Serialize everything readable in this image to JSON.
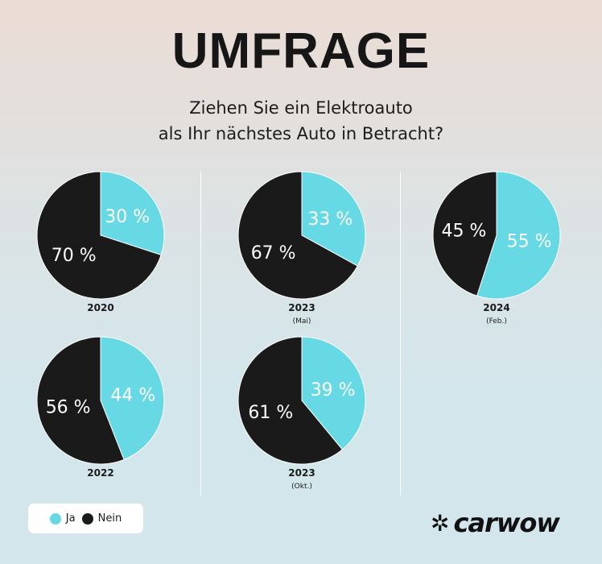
{
  "title": "UMFRAGE",
  "question": [
    "Ziehen Sie ein Elektroauto",
    "als Ihr nächstes Auto in Betracht?"
  ],
  "colors": {
    "ja": "#66d9e5",
    "nein": "#1a1a1a"
  },
  "legend": [
    {
      "label": "Ja",
      "color": "#66d9e5"
    },
    {
      "label": "Nein",
      "color": "#1a1a1a"
    }
  ],
  "logo": "carwow",
  "chart_data": [
    {
      "type": "pie",
      "label": "2020",
      "sublabel": "",
      "slices": [
        {
          "name": "Ja",
          "value": 30,
          "text": "30 %"
        },
        {
          "name": "Nein",
          "value": 70,
          "text": "70 %"
        }
      ]
    },
    {
      "type": "pie",
      "label": "2023",
      "sublabel": "(Mai)",
      "slices": [
        {
          "name": "Ja",
          "value": 33,
          "text": "33 %"
        },
        {
          "name": "Nein",
          "value": 67,
          "text": "67 %"
        }
      ]
    },
    {
      "type": "pie",
      "label": "2024",
      "sublabel": "(Feb.)",
      "slices": [
        {
          "name": "Ja",
          "value": 55,
          "text": "55 %"
        },
        {
          "name": "Nein",
          "value": 45,
          "text": "45 %"
        }
      ]
    },
    {
      "type": "pie",
      "label": "2022",
      "sublabel": "",
      "slices": [
        {
          "name": "Ja",
          "value": 44,
          "text": "44 %"
        },
        {
          "name": "Nein",
          "value": 56,
          "text": "56 %"
        }
      ]
    },
    {
      "type": "pie",
      "label": "2023",
      "sublabel": "(Okt.)",
      "slices": [
        {
          "name": "Ja",
          "value": 39,
          "text": "39 %"
        },
        {
          "name": "Nein",
          "value": 61,
          "text": "61 %"
        }
      ]
    }
  ]
}
